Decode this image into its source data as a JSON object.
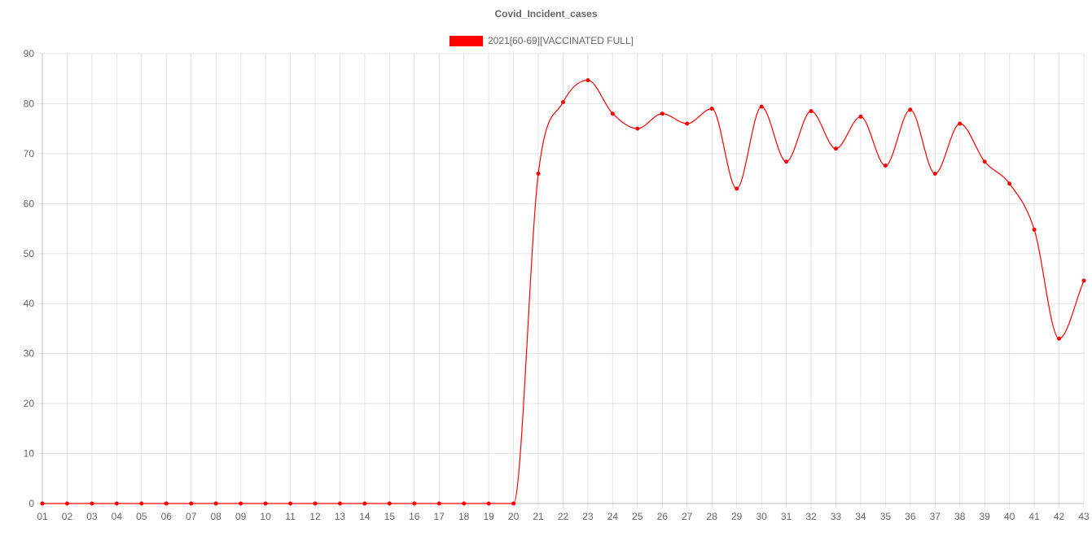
{
  "chart_data": {
    "type": "line",
    "title": "Covid_Incident_cases",
    "legend_position": "top",
    "grid": true,
    "x": [
      "01",
      "02",
      "03",
      "04",
      "05",
      "06",
      "07",
      "08",
      "09",
      "10",
      "11",
      "12",
      "13",
      "14",
      "15",
      "16",
      "17",
      "18",
      "19",
      "20",
      "21",
      "22",
      "23",
      "24",
      "25",
      "26",
      "27",
      "28",
      "29",
      "30",
      "31",
      "32",
      "33",
      "34",
      "35",
      "36",
      "37",
      "38",
      "39",
      "40",
      "41",
      "42",
      "43"
    ],
    "ylim": [
      0,
      90
    ],
    "yticks": [
      0,
      10,
      20,
      30,
      40,
      50,
      60,
      70,
      80,
      90
    ],
    "series": [
      {
        "name": "2021[60-69][VACCINATED FULL]",
        "color": "#ff0000",
        "values": [
          0,
          0,
          0,
          0,
          0,
          0,
          0,
          0,
          0,
          0,
          0,
          0,
          0,
          0,
          0,
          0,
          0,
          0,
          0,
          0,
          66,
          80.3,
          84.7,
          78,
          75,
          78,
          76,
          79,
          63,
          79.4,
          68.4,
          78.5,
          71,
          77.4,
          67.6,
          78.8,
          66,
          76,
          68.4,
          64,
          54.8,
          33,
          44.6
        ]
      }
    ]
  }
}
